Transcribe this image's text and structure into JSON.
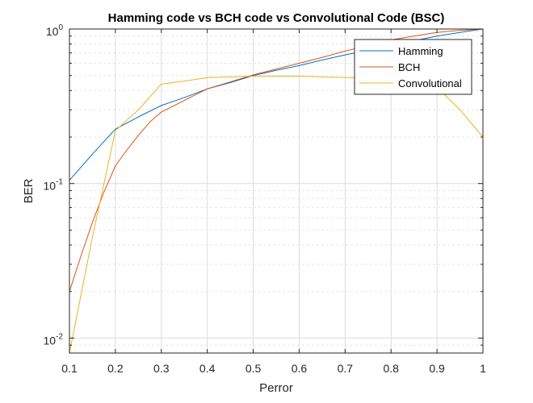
{
  "chart_data": {
    "type": "line",
    "title": "Hamming code vs BCH code vs Convolutional Code (BSC)",
    "xlabel": "Perror",
    "ylabel": "BER",
    "xlim": [
      0.1,
      1
    ],
    "ylim": [
      0.008,
      1
    ],
    "yscale": "log",
    "grid": true,
    "minor_grid": true,
    "legend_position": "top-right",
    "x_ticks": [
      0.1,
      0.2,
      0.3,
      0.4,
      0.5,
      0.6,
      0.7,
      0.8,
      0.9,
      1
    ],
    "x_tick_labels": [
      "0.1",
      "0.2",
      "0.3",
      "0.4",
      "0.5",
      "0.6",
      "0.7",
      "0.8",
      "0.9",
      "1"
    ],
    "y_ticks": [
      {
        "value": 0.01,
        "base": "10",
        "exp": "-2"
      },
      {
        "value": 0.1,
        "base": "10",
        "exp": "-1"
      },
      {
        "value": 1,
        "base": "10",
        "exp": "0"
      }
    ],
    "series": [
      {
        "name": "Hamming",
        "color": "#0072BD",
        "x": [
          0.1,
          0.15,
          0.2,
          0.25,
          0.3,
          0.35,
          0.4,
          0.45,
          0.5,
          0.55,
          0.6,
          0.65,
          0.7,
          0.75,
          0.8,
          0.85,
          0.9,
          0.95,
          1.0
        ],
        "y": [
          0.105,
          0.155,
          0.225,
          0.27,
          0.32,
          0.36,
          0.41,
          0.45,
          0.5,
          0.54,
          0.58,
          0.63,
          0.68,
          0.73,
          0.78,
          0.84,
          0.9,
          0.95,
          1.0
        ]
      },
      {
        "name": "BCH",
        "color": "#D95319",
        "x": [
          0.1,
          0.125,
          0.15,
          0.175,
          0.2,
          0.225,
          0.25,
          0.275,
          0.3,
          0.35,
          0.4,
          0.45,
          0.5,
          0.55,
          0.6,
          0.65,
          0.7,
          0.75,
          0.8,
          0.85,
          0.9,
          0.95,
          1.0
        ],
        "y": [
          0.02,
          0.034,
          0.056,
          0.088,
          0.13,
          0.165,
          0.205,
          0.25,
          0.29,
          0.345,
          0.41,
          0.455,
          0.505,
          0.55,
          0.6,
          0.655,
          0.72,
          0.78,
          0.85,
          0.9,
          0.95,
          0.98,
          1.0
        ]
      },
      {
        "name": "Convolutional",
        "color": "#EDB120",
        "x": [
          0.1,
          0.15,
          0.2,
          0.25,
          0.3,
          0.35,
          0.4,
          0.45,
          0.5,
          0.55,
          0.6,
          0.65,
          0.7,
          0.75,
          0.8,
          0.85,
          0.9,
          0.95,
          1.0
        ],
        "y": [
          0.008,
          0.045,
          0.22,
          0.3,
          0.44,
          0.46,
          0.485,
          0.49,
          0.495,
          0.495,
          0.495,
          0.49,
          0.485,
          0.48,
          0.47,
          0.455,
          0.42,
          0.3,
          0.2
        ]
      }
    ]
  }
}
